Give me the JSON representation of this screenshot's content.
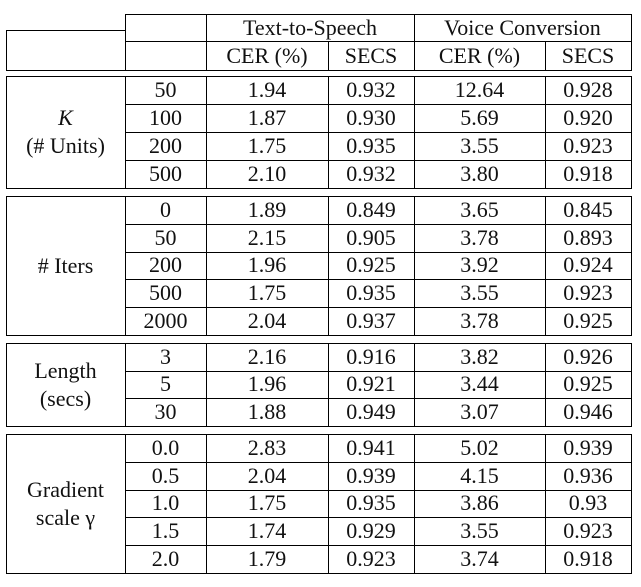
{
  "header": {
    "groups": [
      "Text-to-Speech",
      "Voice Conversion"
    ],
    "columns": [
      "CER (%)",
      "SECS",
      "CER (%)",
      "SECS"
    ]
  },
  "sections": [
    {
      "label_lines": [
        "K",
        "(# Units)"
      ],
      "label_italic_first": true,
      "rows": [
        {
          "setting": "50",
          "values": [
            "1.94",
            "0.932",
            "12.64",
            "0.928"
          ]
        },
        {
          "setting": "100",
          "values": [
            "1.87",
            "0.930",
            "5.69",
            "0.920"
          ]
        },
        {
          "setting": "200",
          "values": [
            "1.75",
            "0.935",
            "3.55",
            "0.923"
          ]
        },
        {
          "setting": "500",
          "values": [
            "2.10",
            "0.932",
            "3.80",
            "0.918"
          ]
        }
      ]
    },
    {
      "label_lines": [
        "# Iters"
      ],
      "rows": [
        {
          "setting": "0",
          "values": [
            "1.89",
            "0.849",
            "3.65",
            "0.845"
          ]
        },
        {
          "setting": "50",
          "values": [
            "2.15",
            "0.905",
            "3.78",
            "0.893"
          ]
        },
        {
          "setting": "200",
          "values": [
            "1.96",
            "0.925",
            "3.92",
            "0.924"
          ]
        },
        {
          "setting": "500",
          "values": [
            "1.75",
            "0.935",
            "3.55",
            "0.923"
          ]
        },
        {
          "setting": "2000",
          "values": [
            "2.04",
            "0.937",
            "3.78",
            "0.925"
          ]
        }
      ]
    },
    {
      "label_lines": [
        "Length",
        "(secs)"
      ],
      "rows": [
        {
          "setting": "3",
          "values": [
            "2.16",
            "0.916",
            "3.82",
            "0.926"
          ]
        },
        {
          "setting": "5",
          "values": [
            "1.96",
            "0.921",
            "3.44",
            "0.925"
          ]
        },
        {
          "setting": "30",
          "values": [
            "1.88",
            "0.949",
            "3.07",
            "0.946"
          ]
        }
      ]
    },
    {
      "label_lines": [
        "Gradient",
        "scale γ"
      ],
      "rows": [
        {
          "setting": "0.0",
          "values": [
            "2.83",
            "0.941",
            "5.02",
            "0.939"
          ]
        },
        {
          "setting": "0.5",
          "values": [
            "2.04",
            "0.939",
            "4.15",
            "0.936"
          ]
        },
        {
          "setting": "1.0",
          "values": [
            "1.75",
            "0.935",
            "3.86",
            "0.93"
          ]
        },
        {
          "setting": "1.5",
          "values": [
            "1.74",
            "0.929",
            "3.55",
            "0.923"
          ]
        },
        {
          "setting": "2.0",
          "values": [
            "1.79",
            "0.923",
            "3.74",
            "0.918"
          ]
        }
      ]
    }
  ]
}
